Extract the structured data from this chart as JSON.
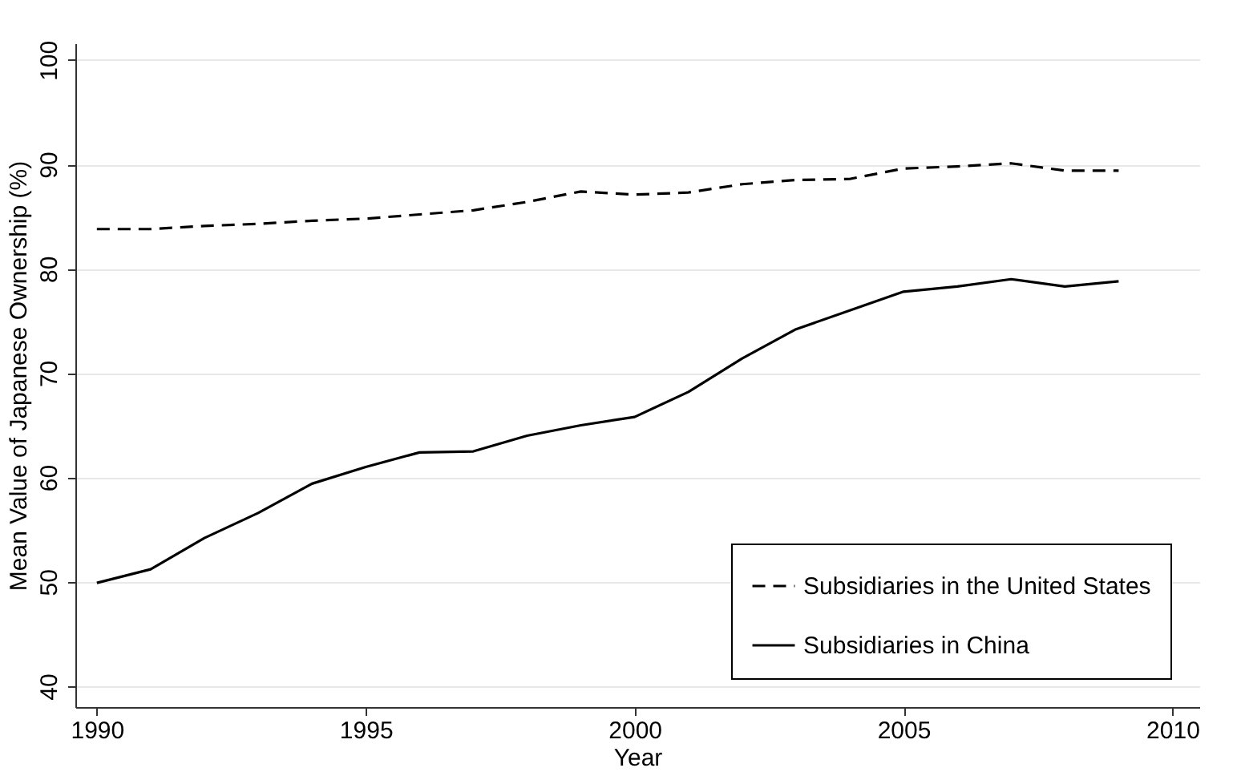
{
  "chart_data": {
    "type": "line",
    "xlabel": "Year",
    "ylabel": "Mean Value of Japanese Ownership (%)",
    "x": [
      1990,
      1991,
      1992,
      1993,
      1994,
      1995,
      1996,
      1997,
      1998,
      1999,
      2000,
      2001,
      2002,
      2003,
      2004,
      2005,
      2006,
      2007,
      2008,
      2009
    ],
    "series": [
      {
        "name": "Subsidiaries in the United States",
        "color": "#000000",
        "line_style": "dashed",
        "values": [
          83.8,
          83.8,
          84.1,
          84.3,
          84.6,
          84.8,
          85.2,
          85.6,
          86.4,
          87.4,
          87.1,
          87.3,
          88.1,
          88.5,
          88.6,
          89.6,
          89.8,
          90.1,
          89.4,
          89.4
        ]
      },
      {
        "name": "Subsidiaries in China",
        "color": "#000000",
        "line_style": "solid",
        "values": [
          49.9,
          51.2,
          54.2,
          56.6,
          59.4,
          61,
          62.4,
          62.5,
          64,
          65,
          65.8,
          68.2,
          71.4,
          74.2,
          76,
          77.8,
          78.3,
          79,
          78.3,
          78.8
        ]
      }
    ],
    "xlim": [
      1989.6,
      2010.5
    ],
    "xticks": [
      1990,
      1995,
      2000,
      2005,
      2010
    ],
    "ylim": [
      38,
      101.6
    ],
    "yticks": [
      40,
      50,
      60,
      70,
      80,
      90,
      100
    ],
    "grid": "y",
    "legend": "bottom right",
    "marker": "none"
  }
}
